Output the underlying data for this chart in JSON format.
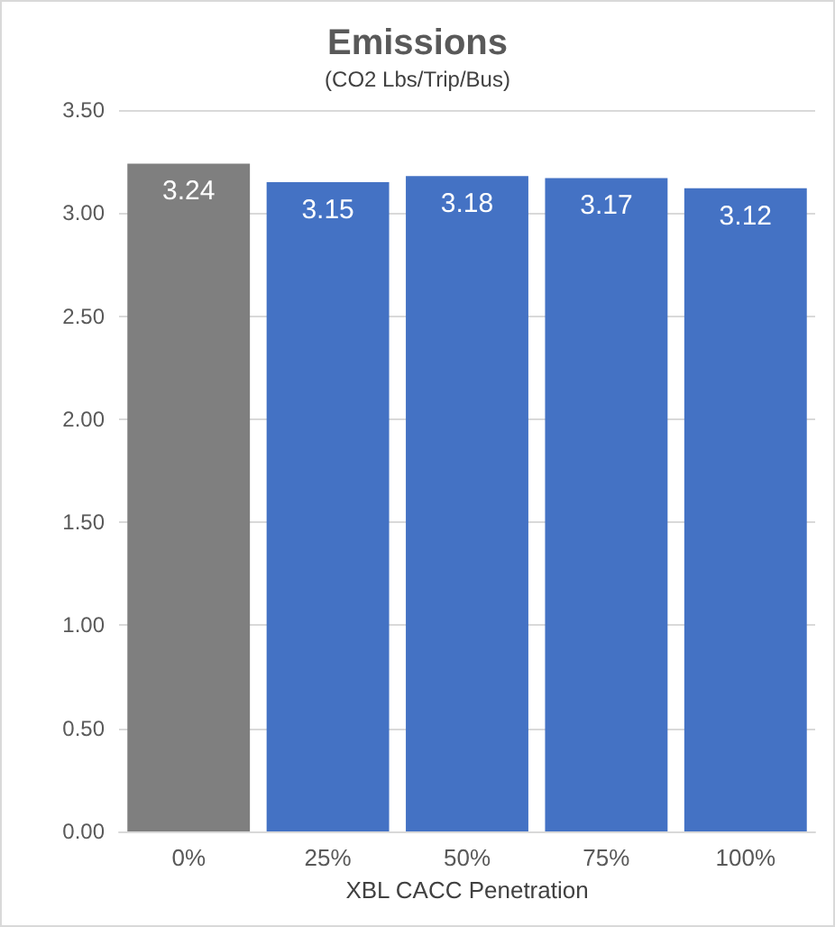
{
  "chart_data": {
    "type": "bar",
    "title": "Emissions",
    "subtitle": "(CO2 Lbs/Trip/Bus)",
    "xlabel": "XBL CACC Penetration",
    "categories": [
      "0%",
      "25%",
      "50%",
      "75%",
      "100%"
    ],
    "values": [
      3.24,
      3.15,
      3.18,
      3.17,
      3.12
    ],
    "colors": [
      "#7f7f7f",
      "#4472c4",
      "#4472c4",
      "#4472c4",
      "#4472c4"
    ],
    "ylim": [
      0,
      3.5
    ],
    "yticks": [
      {
        "value": 0,
        "label": "0.00"
      },
      {
        "value": 0.5,
        "label": "0.50"
      },
      {
        "value": 1,
        "label": "1.00"
      },
      {
        "value": 1.5,
        "label": "1.50"
      },
      {
        "value": 2,
        "label": "2.00"
      },
      {
        "value": 2.5,
        "label": "2.50"
      },
      {
        "value": 3,
        "label": "3.00"
      },
      {
        "value": 3.5,
        "label": "3.50"
      }
    ],
    "grid": "y",
    "data_labels": true
  }
}
